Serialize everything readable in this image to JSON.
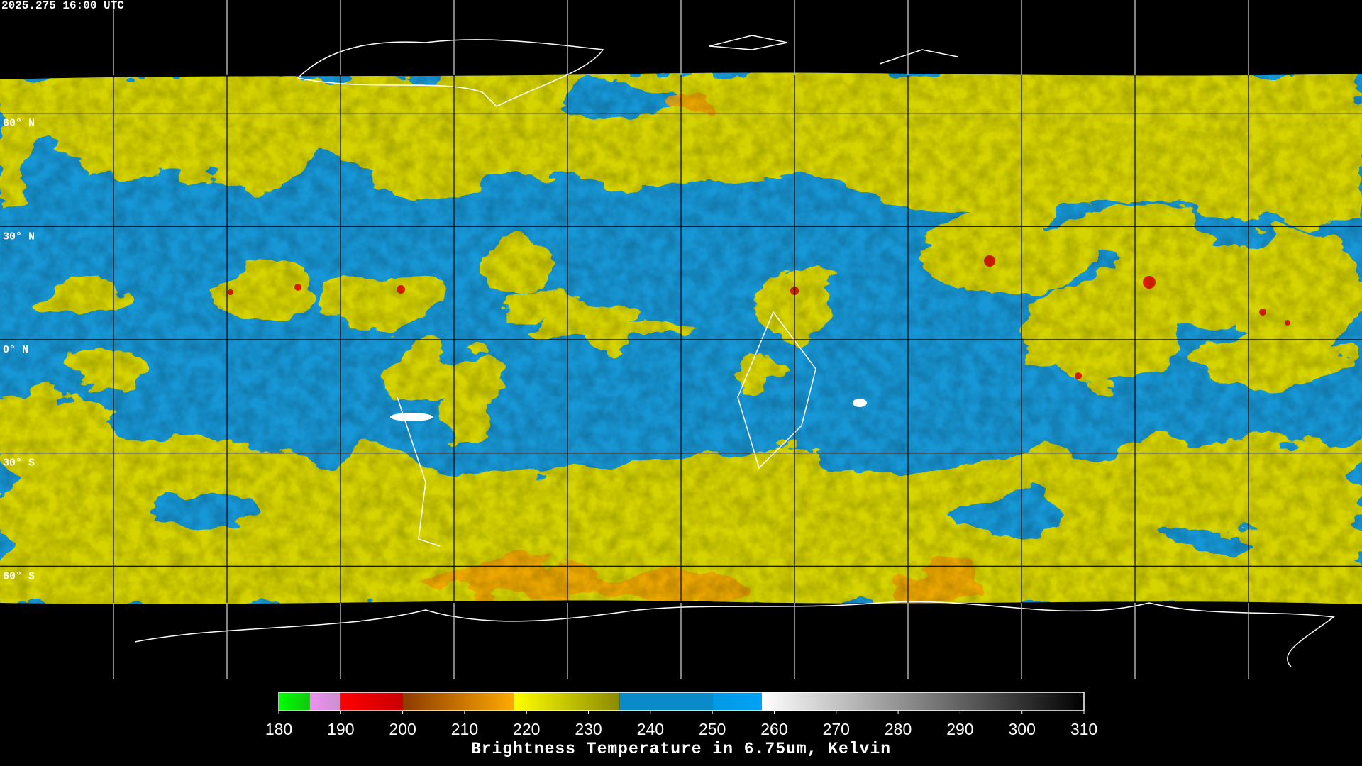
{
  "header": {
    "timestamp": "2025.275 16:00 UTC"
  },
  "map": {
    "lat_range": [
      90,
      -90
    ],
    "latitudes": [
      {
        "value": 60,
        "label": "60° N"
      },
      {
        "value": 30,
        "label": "30° N"
      },
      {
        "value": 0,
        "label": "0° N"
      },
      {
        "value": -30,
        "label": "30° S"
      },
      {
        "value": -60,
        "label": "60° S"
      }
    ]
  },
  "colorbar": {
    "range": [
      180,
      310
    ],
    "ticks": [
      180,
      190,
      200,
      210,
      220,
      230,
      240,
      250,
      260,
      270,
      280,
      290,
      300,
      310
    ],
    "segments": [
      {
        "from": 180,
        "to": 185,
        "colors": [
          "#00ff00",
          "#10c810"
        ]
      },
      {
        "from": 185,
        "to": 190,
        "colors": [
          "#f090f0",
          "#c890d0"
        ]
      },
      {
        "from": 190,
        "to": 200,
        "colors": [
          "#ff0000",
          "#c80000"
        ]
      },
      {
        "from": 200,
        "to": 218,
        "colors": [
          "#8c3a00",
          "#ffaa00"
        ]
      },
      {
        "from": 218,
        "to": 235,
        "colors": [
          "#ffff00",
          "#8a8a00"
        ]
      },
      {
        "from": 235,
        "to": 250,
        "colors": [
          "#0a8ac8",
          "#0a8ac8"
        ]
      },
      {
        "from": 250,
        "to": 258,
        "colors": [
          "#0099e6",
          "#00a2f5"
        ]
      },
      {
        "from": 258,
        "to": 310,
        "colors": [
          "#ffffff",
          "#000000"
        ]
      }
    ],
    "title": "Brightness Temperature in 6.75um, Kelvin"
  }
}
